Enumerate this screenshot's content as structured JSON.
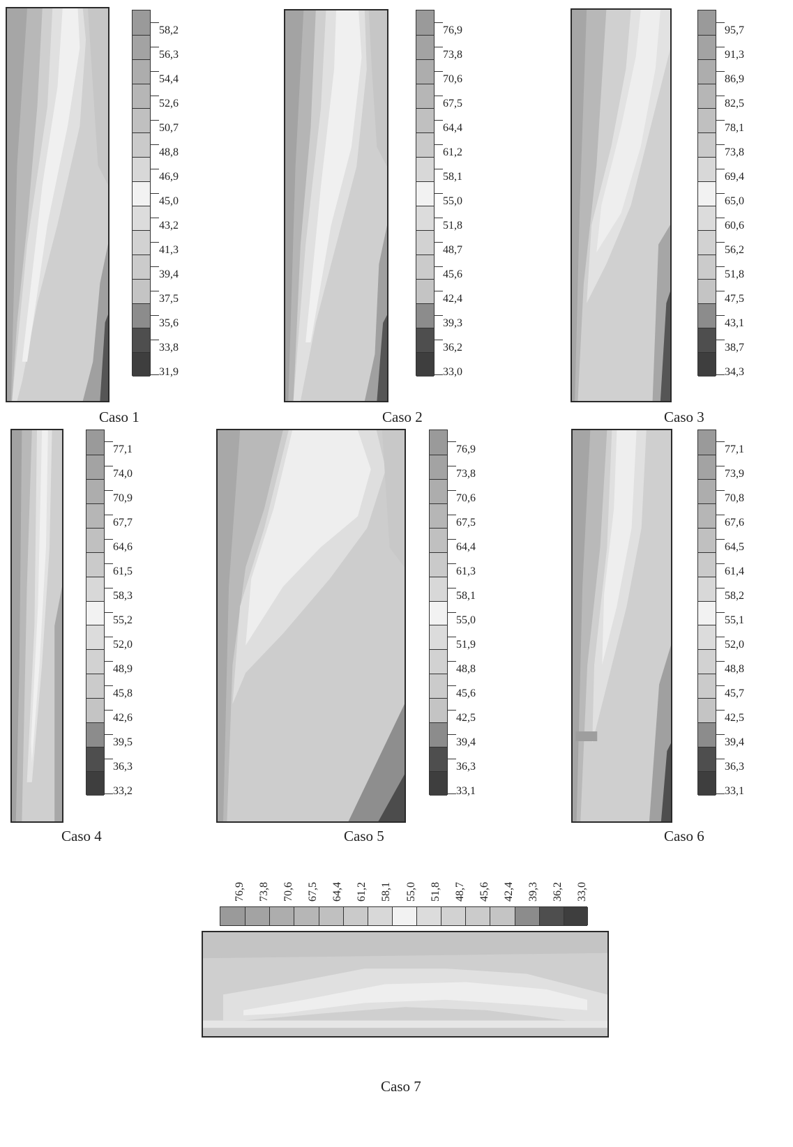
{
  "cases": [
    {
      "caption": "Caso 1",
      "legend": [
        "58,2",
        "56,3",
        "54,4",
        "52,6",
        "50,7",
        "48,8",
        "46,9",
        "45,0",
        "43,2",
        "41,3",
        "39,4",
        "37,5",
        "35,6",
        "33,8",
        "31,9"
      ]
    },
    {
      "caption": "Caso 2",
      "legend": [
        "76,9",
        "73,8",
        "70,6",
        "67,5",
        "64,4",
        "61,2",
        "58,1",
        "55,0",
        "51,8",
        "48,7",
        "45,6",
        "42,4",
        "39,3",
        "36,2",
        "33,0"
      ]
    },
    {
      "caption": "Caso 3",
      "legend": [
        "95,7",
        "91,3",
        "86,9",
        "82,5",
        "78,1",
        "73,8",
        "69,4",
        "65,0",
        "60,6",
        "56,2",
        "51,8",
        "47,5",
        "43,1",
        "38,7",
        "34,3"
      ]
    },
    {
      "caption": "Caso 4",
      "legend": [
        "77,1",
        "74,0",
        "70,9",
        "67,7",
        "64,6",
        "61,5",
        "58,3",
        "55,2",
        "52,0",
        "48,9",
        "45,8",
        "42,6",
        "39,5",
        "36,3",
        "33,2"
      ]
    },
    {
      "caption": "Caso 5",
      "legend": [
        "76,9",
        "73,8",
        "70,6",
        "67,5",
        "64,4",
        "61,3",
        "58,1",
        "55,0",
        "51,9",
        "48,8",
        "45,6",
        "42,5",
        "39,4",
        "36,3",
        "33,1"
      ]
    },
    {
      "caption": "Caso 6",
      "legend": [
        "77,1",
        "73,9",
        "70,8",
        "67,6",
        "64,5",
        "61,4",
        "58,2",
        "55,1",
        "52,0",
        "48,8",
        "45,7",
        "42,5",
        "39,4",
        "36,3",
        "33,1"
      ]
    },
    {
      "caption": "Caso 7",
      "legend": [
        "76,9",
        "73,8",
        "70,6",
        "67,5",
        "64,4",
        "61,2",
        "58,1",
        "55,0",
        "51,8",
        "48,7",
        "45,6",
        "42,4",
        "39,3",
        "36,2",
        "33,0"
      ]
    }
  ],
  "legend_colors": [
    "#9a9a9a",
    "#a3a3a3",
    "#adadad",
    "#b6b6b6",
    "#c0c0c0",
    "#cacaca",
    "#d8d8d8",
    "#f2f2f2",
    "#dcdcdc",
    "#d2d2d2",
    "#cbcbcb",
    "#c4c4c4",
    "#8c8c8c",
    "#4e4e4e",
    "#3e3e3e"
  ]
}
